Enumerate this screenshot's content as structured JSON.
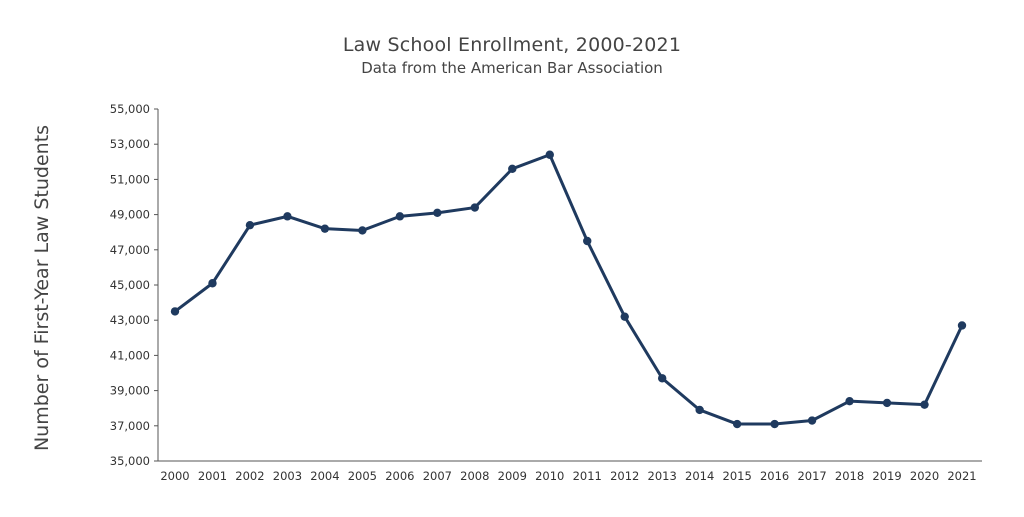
{
  "chart_data": {
    "type": "line",
    "title": "Law School Enrollment, 2000-2021",
    "subtitle": "Data from the American Bar Association",
    "ylabel": "Number of First-Year Law Students",
    "xlabel": "",
    "ylim": [
      35000,
      55000
    ],
    "yticks": [
      "35,000",
      "37,000",
      "39,000",
      "41,000",
      "43,000",
      "45,000",
      "47,000",
      "49,000",
      "51,000",
      "53,000",
      "55,000"
    ],
    "ytick_values": [
      35000,
      37000,
      39000,
      41000,
      43000,
      45000,
      47000,
      49000,
      51000,
      53000,
      55000
    ],
    "categories": [
      "2000",
      "2001",
      "2002",
      "2003",
      "2004",
      "2005",
      "2006",
      "2007",
      "2008",
      "2009",
      "2010",
      "2011",
      "2012",
      "2013",
      "2014",
      "2015",
      "2016",
      "2017",
      "2018",
      "2019",
      "2020",
      "2021"
    ],
    "values": [
      43500,
      45100,
      48400,
      48900,
      48200,
      48100,
      48900,
      49100,
      49400,
      51600,
      52400,
      47500,
      43200,
      39700,
      37900,
      37100,
      37100,
      37300,
      38400,
      38300,
      38200,
      42700
    ],
    "line_color": "#1f3a5f",
    "grid": false
  }
}
